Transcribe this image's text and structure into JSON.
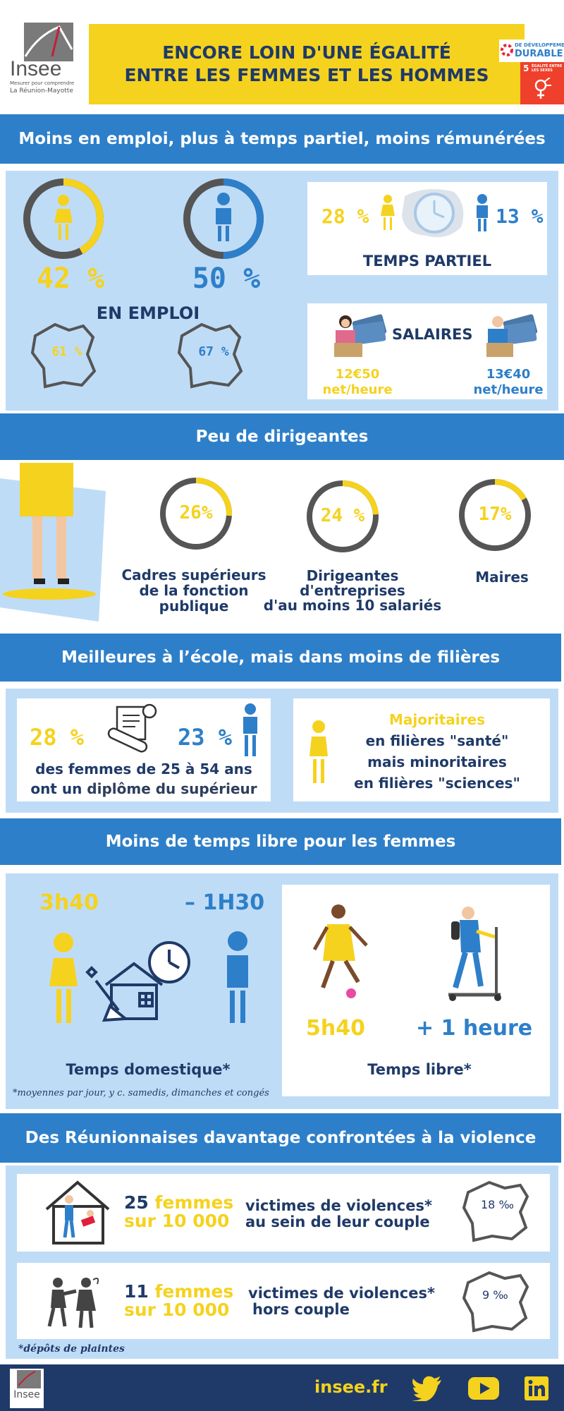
{
  "header": {
    "logo_text": "Insee",
    "logo_tagline": "Mesurer pour comprendre",
    "logo_region": "La Réunion-Mayotte",
    "title_line1": "ENCORE LOIN D'UNE ÉGALITÉ",
    "title_line2": "ENTRE LES FEMMES ET LES HOMMES",
    "odd_label_top": "DE DÉVELOPPEMENT",
    "odd_label_main": "DURABLE",
    "odd5_number": "5",
    "odd5_text": "ÉGALITÉ ENTRE LES SEXES"
  },
  "section1": {
    "title": "Moins en emploi, plus à temps partiel, moins rémunérées",
    "women_employment": "42 %",
    "men_employment": "50 %",
    "employment_label": "EN EMPLOI",
    "france_women": "61 %",
    "france_men": "67 %",
    "women_fraction": 0.42,
    "men_fraction": 0.5,
    "part_time_women": "28 %",
    "part_time_men": "13 %",
    "part_time_label": "TEMPS PARTIEL",
    "salary_label": "SALAIRES",
    "salary_women_value": "12€50",
    "salary_women_unit": "net/heure",
    "salary_men_value": "13€40",
    "salary_men_unit": "net/heure"
  },
  "section2": {
    "title": "Peu de dirigeantes",
    "items": [
      {
        "value": "26%",
        "fraction": 0.26,
        "label_lines": [
          "Cadres supérieurs",
          "de la fonction",
          "publique"
        ]
      },
      {
        "value": "24 %",
        "fraction": 0.24,
        "label_lines": [
          "Dirigeantes",
          "d'entreprises",
          "d'au moins 10 salariés"
        ]
      },
      {
        "value": "17%",
        "fraction": 0.17,
        "label_lines": [
          "Maires"
        ]
      }
    ]
  },
  "section3": {
    "title": "Meilleures à l’école, mais dans moins de filières",
    "women_degree": "28 %",
    "men_degree": "23 %",
    "degree_line1": "des femmes de 25 à 54 ans",
    "degree_line2a": "ont un ",
    "degree_line2b": "diplôme du supérieur",
    "majority_line1": "Majoritaires",
    "majority_line2": "en filières \"santé\"",
    "majority_line3": "mais minoritaires",
    "majority_line4": "en filières \"sciences\""
  },
  "section4": {
    "title": "Moins de temps libre pour les femmes",
    "domestic_women": "3h40",
    "domestic_men": "– 1H30",
    "domestic_label": "Temps domestique*",
    "footnote": "*moyennes par jour, y c. samedis, dimanches et congés",
    "free_women": "5h40",
    "free_men": "+ 1 heure",
    "free_label": "Temps libre*"
  },
  "section5": {
    "title": "Des Réunionnaises davantage confrontées à la violence",
    "row1_count": "25",
    "row1_women": "femmes",
    "row1_per": "sur 10 000",
    "row1_text_a": "victimes de violences*",
    "row1_text_b": "au sein de leur couple",
    "row1_france": "18 ‰",
    "row2_count": "11",
    "row2_women": "femmes",
    "row2_per": "sur 10 000",
    "row2_text_a": "victimes de violences*",
    "row2_text_b": "hors couple",
    "row2_france": "9 ‰",
    "footnote": "*dépôts de plaintes"
  },
  "footer": {
    "logo_text": "Insee",
    "site": "insee.fr"
  },
  "colors": {
    "yellow": "#f5d21e",
    "blue": "#2e7fc9",
    "navy": "#1f3a68",
    "light_blue": "#bfdcf7",
    "gray": "#555555"
  }
}
